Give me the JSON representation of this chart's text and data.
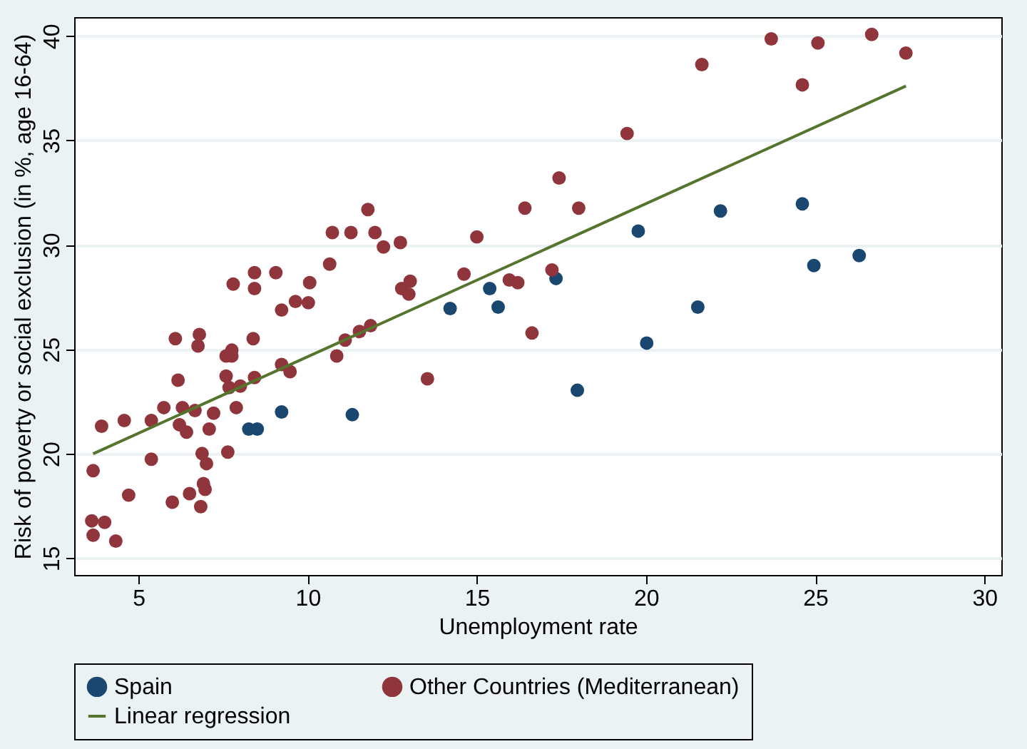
{
  "chart_data": {
    "type": "scatter",
    "xlabel": "Unemployment rate",
    "ylabel": "Risk of poverty or social exclusion (in %, age 16-64)",
    "xlim": [
      3.1,
      30.5
    ],
    "ylim": [
      14.2,
      40.9
    ],
    "xticks": [
      5,
      10,
      15,
      20,
      25,
      30
    ],
    "yticks": [
      15,
      20,
      25,
      30,
      35,
      40
    ],
    "grid": "y",
    "legend": "bottom",
    "series": [
      {
        "name": "Spain",
        "marker": "circle",
        "color": "#1a476f",
        "x": [
          8.26,
          8.51,
          9.23,
          11.32,
          14.21,
          15.38,
          15.63,
          17.34,
          17.97,
          19.77,
          20.02,
          22.2,
          21.53,
          24.62,
          24.96,
          26.3
        ],
        "values": [
          21.18,
          21.18,
          22.0,
          21.87,
          26.95,
          27.91,
          27.02,
          28.39,
          23.04,
          30.66,
          25.3,
          31.62,
          27.02,
          31.96,
          29.01,
          29.49
        ]
      },
      {
        "name": "Other Countries (Mediterranean)",
        "marker": "circle",
        "color": "#90353b",
        "x": [
          3.91,
          4.58,
          5.38,
          5.38,
          5.75,
          6.3,
          6.67,
          6.17,
          6.09,
          6.76,
          6.8,
          7.8,
          8.43,
          9.06,
          8.43,
          10.06,
          10.65,
          9.23,
          9.64,
          10.02,
          8.39,
          7.59,
          7.76,
          7.76,
          7.59,
          7.68,
          8.01,
          8.43,
          9.23,
          9.48,
          7.89,
          7.22,
          7.09,
          6.21,
          6.42,
          3.66,
          6.88,
          7.01,
          7.64,
          4.71,
          6.0,
          6.51,
          6.92,
          6.97,
          6.84,
          3.62,
          4.0,
          3.66,
          4.33,
          11.11,
          10.86,
          11.53,
          11.86,
          11.78,
          10.73,
          11.28,
          11.99,
          12.24,
          12.74,
          15.0,
          16.42,
          17.43,
          18.01,
          19.44,
          17.22,
          14.62,
          15.96,
          16.21,
          12.78,
          13.03,
          12.99,
          16.63,
          13.54,
          21.65,
          23.7,
          25.08,
          26.67,
          27.68,
          24.62
        ],
        "values": [
          21.32,
          21.59,
          21.59,
          19.74,
          22.21,
          22.21,
          22.07,
          23.52,
          25.51,
          25.16,
          25.71,
          28.12,
          28.67,
          28.67,
          27.91,
          28.19,
          29.08,
          26.88,
          27.29,
          27.23,
          25.51,
          24.68,
          24.96,
          24.68,
          23.72,
          23.17,
          23.24,
          23.65,
          24.27,
          23.93,
          22.21,
          21.94,
          21.18,
          21.39,
          21.04,
          19.19,
          20.01,
          19.53,
          20.08,
          18.02,
          17.68,
          18.09,
          18.57,
          18.3,
          17.47,
          16.79,
          16.72,
          16.1,
          15.82,
          25.44,
          24.68,
          25.85,
          26.13,
          31.69,
          30.59,
          30.59,
          30.59,
          29.9,
          30.11,
          30.38,
          31.76,
          33.2,
          31.76,
          35.33,
          28.8,
          28.6,
          28.32,
          28.19,
          27.91,
          28.26,
          27.64,
          25.78,
          23.59,
          38.63,
          39.86,
          39.66,
          40.07,
          39.18,
          37.66
        ]
      },
      {
        "name": "Linear regression",
        "type": "line",
        "color": "#55752f",
        "x": [
          3.66,
          27.68
        ],
        "values": [
          20.0,
          37.6
        ]
      }
    ]
  }
}
